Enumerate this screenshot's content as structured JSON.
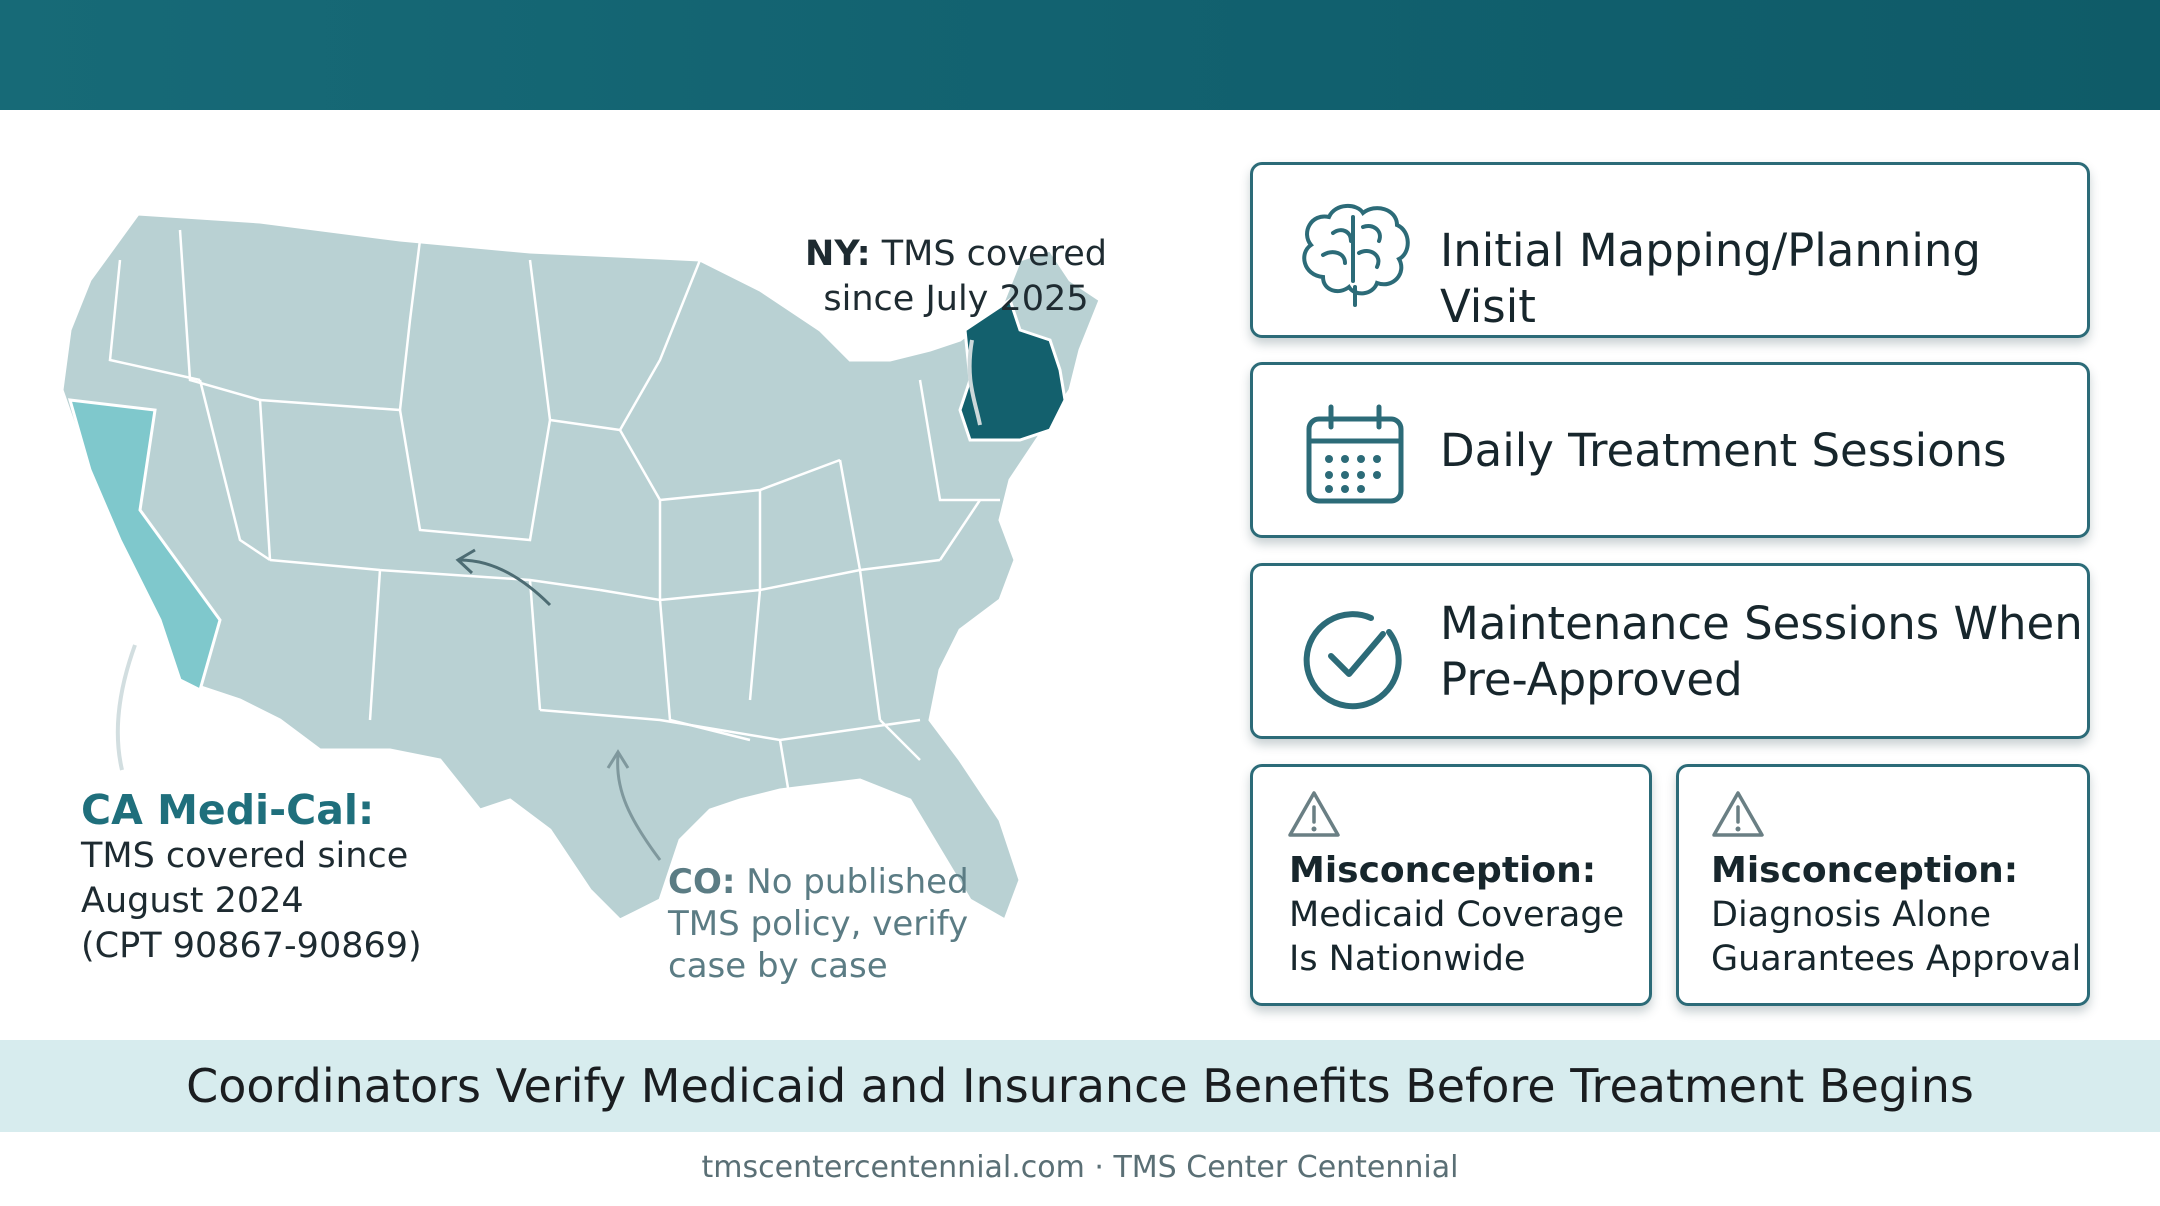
{
  "map": {
    "ca": {
      "title": "CA Medi-Cal:",
      "line1": "TMS covered since",
      "line2": "August 2024",
      "line3": "(CPT 90867-90869)",
      "color": "#7fc8cc"
    },
    "ny": {
      "title": "NY:",
      "line1": "TMS covered",
      "line2": "since July 2025",
      "color": "#13606d"
    },
    "co": {
      "title": "CO:",
      "line1": "No published",
      "line2": "TMS policy, verify",
      "line3": "case by case"
    },
    "base_color": "#b9d1d3"
  },
  "cards": [
    {
      "icon": "brain-icon",
      "label": "Initial Mapping/Planning Visit"
    },
    {
      "icon": "calendar-icon",
      "label": "Daily Treatment Sessions"
    },
    {
      "icon": "check-circle-icon",
      "label_line1": "Maintenance Sessions When",
      "label_line2": "Pre-Approved"
    }
  ],
  "misconceptions": [
    {
      "icon": "warning-icon",
      "title": "Misconception:",
      "line1": "Medicaid Coverage",
      "line2": "Is Nationwide"
    },
    {
      "icon": "warning-icon",
      "title": "Misconception:",
      "line1": "Diagnosis Alone",
      "line2": "Guarantees Approval"
    }
  ],
  "banner": "Coordinators Verify Medicaid and Insurance Benefits Before Treatment Begins",
  "footer": "tmscentercentennial.com · TMS Center Centennial",
  "colors": {
    "accent": "#13606d",
    "band": "#d7ecee"
  }
}
